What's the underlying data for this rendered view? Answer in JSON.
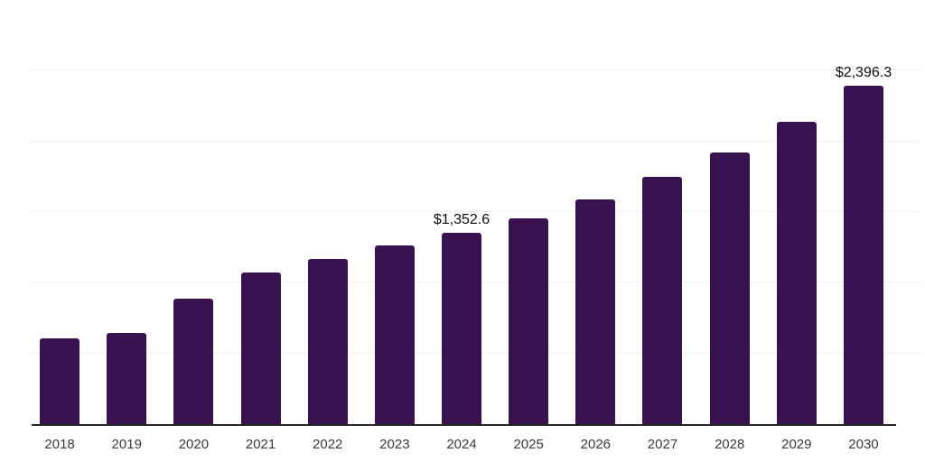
{
  "chart_data": {
    "type": "bar",
    "title": "",
    "xlabel": "",
    "ylabel": "",
    "categories": [
      "2018",
      "2019",
      "2020",
      "2021",
      "2022",
      "2023",
      "2024",
      "2025",
      "2026",
      "2027",
      "2028",
      "2029",
      "2030"
    ],
    "values": [
      607,
      643,
      889,
      1074,
      1170,
      1262,
      1352.6,
      1457,
      1592,
      1750,
      1924,
      2141,
      2396.3
    ],
    "data_labels": {
      "2024": "$1,352.6",
      "2030": "$2,396.3"
    },
    "ylim": [
      0,
      3000
    ],
    "gridline_values": [
      500,
      1000,
      1500,
      2000,
      2500,
      3000
    ],
    "grid": true,
    "legend": false,
    "bar_color": "#38124e",
    "gridline_color": "#efefef",
    "axis_line_color": "#262626",
    "tick_label_color": "#3a3a3a",
    "data_label_color": "#0d0d0d"
  }
}
